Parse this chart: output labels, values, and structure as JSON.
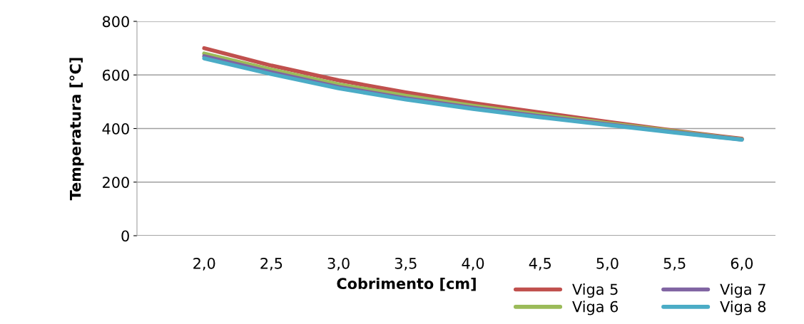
{
  "chart_data": {
    "type": "line",
    "xlabel": "Cobrimento [cm]",
    "ylabel": "Temperatura [°C]",
    "categories": [
      "2,0",
      "2,5",
      "3,0",
      "3,5",
      "4,0",
      "4,5",
      "5,0",
      "5,5",
      "6,0"
    ],
    "series": [
      {
        "name": "Viga 5",
        "color": "#c0504d",
        "values": [
          700,
          635,
          580,
          535,
          495,
          460,
          425,
          392,
          362
        ]
      },
      {
        "name": "Viga 6",
        "color": "#9bbb59",
        "values": [
          680,
          620,
          565,
          522,
          485,
          452,
          420,
          390,
          360
        ]
      },
      {
        "name": "Viga 7",
        "color": "#8064a2",
        "values": [
          670,
          610,
          555,
          513,
          478,
          446,
          416,
          387,
          359
        ]
      },
      {
        "name": "Viga 8",
        "color": "#4bacc6",
        "values": [
          662,
          603,
          550,
          508,
          473,
          442,
          413,
          385,
          358
        ]
      }
    ],
    "ylim": [
      0,
      800
    ],
    "yticks": [
      0,
      200,
      400,
      600,
      800
    ],
    "grid": "y",
    "legend": "bottom right",
    "marker": "none",
    "line_style": "solid"
  }
}
